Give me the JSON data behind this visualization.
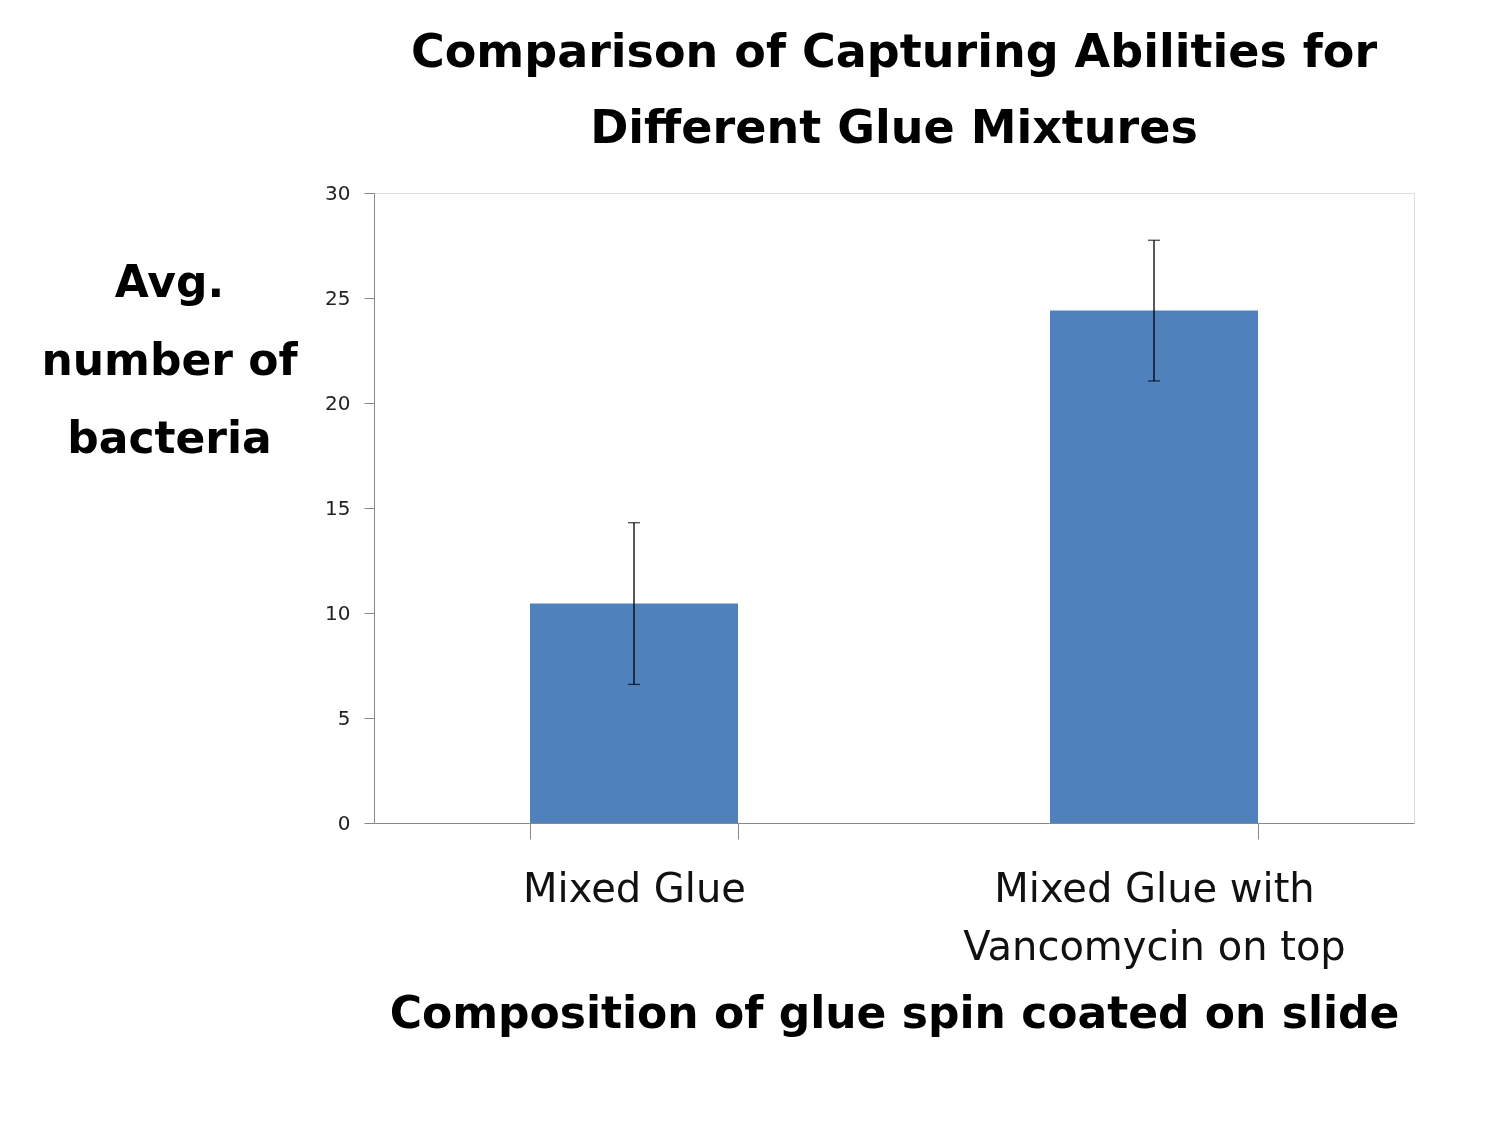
{
  "chart_data": {
    "type": "bar",
    "title": "Comparison of Capturing Abilities for Different Glue Mixtures",
    "xlabel": "Composition of glue spin coated on slide",
    "ylabel": "Avg. number of bacteria",
    "categories": [
      "Mixed Glue",
      "Mixed Glue with Vancomycin on top"
    ],
    "series": [
      {
        "color": "#4f81bd",
        "values": [
          10.45,
          24.4
        ],
        "errors": [
          3.85,
          3.35
        ]
      }
    ],
    "ylim": [
      0,
      30
    ],
    "yticks": [
      0,
      5,
      10,
      15,
      20,
      25,
      30
    ],
    "grid": false
  }
}
